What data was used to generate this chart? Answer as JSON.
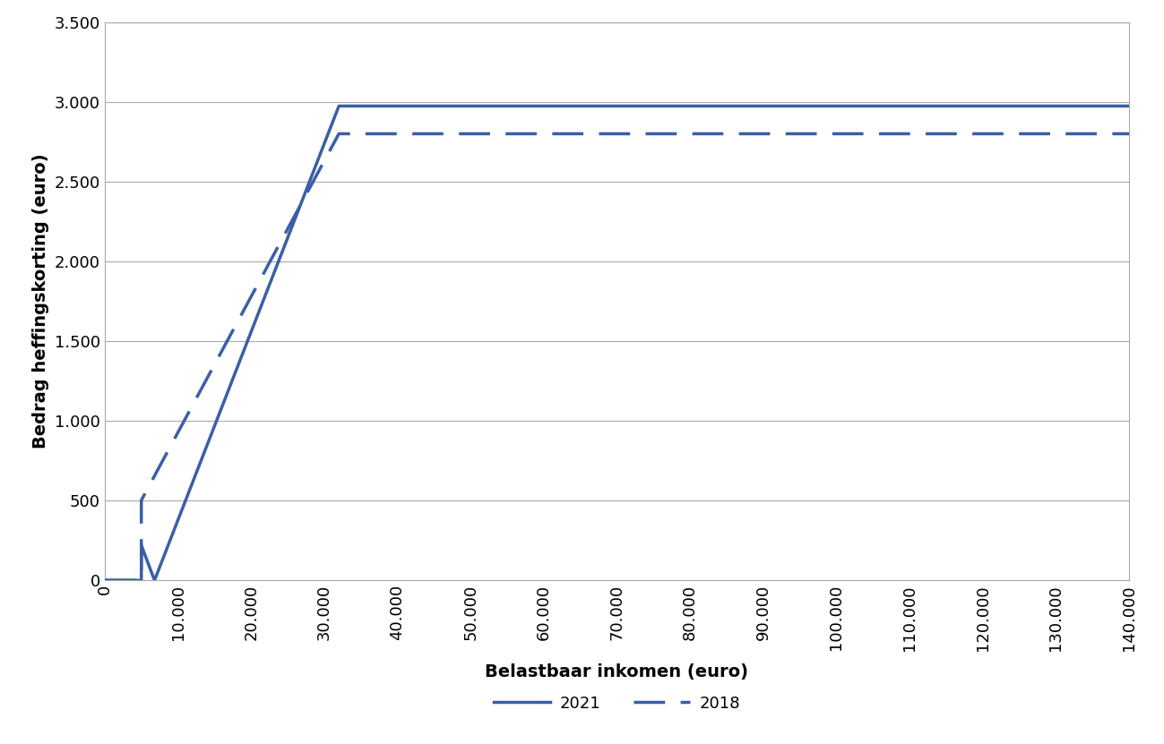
{
  "title": "",
  "xlabel": "Belastbaar inkomen (euro)",
  "ylabel": "Bedrag heffingskorting (euro)",
  "line_color": "#3B5EA6",
  "xlim": [
    0,
    140000
  ],
  "ylim": [
    0,
    3500
  ],
  "xticks": [
    0,
    10000,
    20000,
    30000,
    40000,
    50000,
    60000,
    70000,
    80000,
    90000,
    100000,
    110000,
    120000,
    130000,
    140000
  ],
  "yticks": [
    0,
    500,
    1000,
    1500,
    2000,
    2500,
    3000,
    3500
  ],
  "legend_2021": "2021",
  "legend_2018": "2018",
  "line2021_x": [
    0,
    5000,
    5001,
    6800,
    6801,
    32000,
    140000
  ],
  "line2021_y": [
    0,
    0,
    220,
    0,
    0,
    2975,
    2975
  ],
  "line2018_x": [
    0,
    4999,
    5000,
    32000,
    140000
  ],
  "line2018_y": [
    0,
    0,
    502,
    2801,
    2801
  ],
  "background_color": "#ffffff",
  "grid_color": "#aaaaaa",
  "tick_fontsize": 13,
  "label_fontsize": 14,
  "legend_fontsize": 13,
  "linewidth": 2.5
}
